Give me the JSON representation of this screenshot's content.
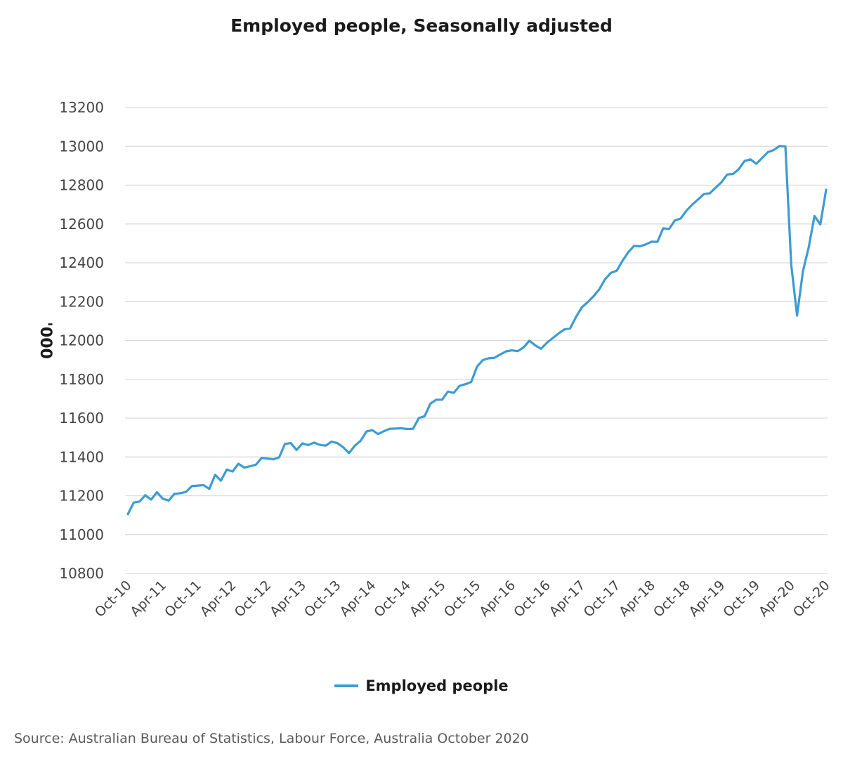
{
  "chart_data": {
    "type": "line",
    "title": "Employed people, Seasonally adjusted",
    "ylabel": "'000",
    "xlabel": "",
    "ylim": [
      10800,
      13200
    ],
    "yticks": [
      10800,
      11000,
      11200,
      11400,
      11600,
      11800,
      12000,
      12200,
      12400,
      12600,
      12800,
      13000,
      13200
    ],
    "xtick_labels": [
      "Oct-10",
      "Apr-11",
      "Oct-11",
      "Apr-12",
      "Oct-12",
      "Apr-13",
      "Oct-13",
      "Apr-14",
      "Oct-14",
      "Apr-15",
      "Oct-15",
      "Apr-16",
      "Oct-16",
      "Apr-17",
      "Oct-17",
      "Apr-18",
      "Oct-18",
      "Apr-19",
      "Oct-19",
      "Apr-20",
      "Oct-20"
    ],
    "x_start": "Oct-10",
    "x_end": "Oct-20",
    "grid": true,
    "legend_position": "bottom",
    "series": [
      {
        "name": "Employed people",
        "color": "#3d9bd3",
        "values": [
          11105,
          11165,
          11170,
          11203,
          11180,
          11218,
          11185,
          11175,
          11210,
          11213,
          11220,
          11250,
          11252,
          11255,
          11235,
          11308,
          11278,
          11335,
          11325,
          11365,
          11345,
          11352,
          11360,
          11395,
          11392,
          11388,
          11398,
          11467,
          11471,
          11436,
          11470,
          11461,
          11474,
          11462,
          11458,
          11479,
          11471,
          11450,
          11420,
          11458,
          11483,
          11531,
          11538,
          11518,
          11533,
          11545,
          11546,
          11548,
          11544,
          11545,
          11600,
          11610,
          11675,
          11695,
          11695,
          11737,
          11730,
          11766,
          11775,
          11786,
          11865,
          11899,
          11908,
          11911,
          11928,
          11944,
          11949,
          11945,
          11964,
          11999,
          11975,
          11957,
          11988,
          12012,
          12036,
          12057,
          12062,
          12120,
          12170,
          12197,
          12227,
          12263,
          12315,
          12348,
          12359,
          12410,
          12455,
          12487,
          12485,
          12495,
          12509,
          12508,
          12578,
          12574,
          12618,
          12628,
          12669,
          12700,
          12727,
          12754,
          12758,
          12787,
          12815,
          12855,
          12858,
          12883,
          12925,
          12933,
          12910,
          12940,
          12970,
          12981,
          13002,
          13000,
          12390,
          12128,
          12355,
          12480,
          12641,
          12598,
          12777
        ]
      }
    ],
    "source": "Source: Australian Bureau of Statistics, Labour Force, Australia October 2020"
  }
}
